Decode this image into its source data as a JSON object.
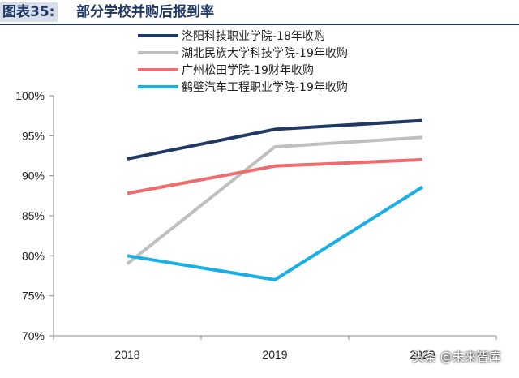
{
  "header": {
    "figure_label": "图表35:",
    "title": "部分学校并购后报到率"
  },
  "watermark": "头条 @未来智库",
  "chart_data": {
    "type": "line",
    "title": "部分学校并购后报到率",
    "xlabel": "",
    "ylabel": "",
    "categories": [
      "2018",
      "2019",
      "2020"
    ],
    "ylim": [
      70,
      100
    ],
    "yticks": [
      "70%",
      "75%",
      "80%",
      "85%",
      "90%",
      "95%",
      "100%"
    ],
    "grid": false,
    "legend_position": "top-center",
    "series": [
      {
        "name": "洛阳科技职业学院-18年收购",
        "color": "#1f3864",
        "values": [
          92.1,
          95.8,
          96.9
        ]
      },
      {
        "name": "湖北民族大学科技学院-19年收购",
        "color": "#bfbfbf",
        "values": [
          79.0,
          93.6,
          94.8
        ]
      },
      {
        "name": "广州松田学院-19财年收购",
        "color": "#ee6b6e",
        "values": [
          87.8,
          91.2,
          92.0
        ]
      },
      {
        "name": "鹤壁汽车工程职业学院-19年收购",
        "color": "#18aee6",
        "values": [
          80.0,
          77.0,
          88.6
        ]
      }
    ]
  }
}
